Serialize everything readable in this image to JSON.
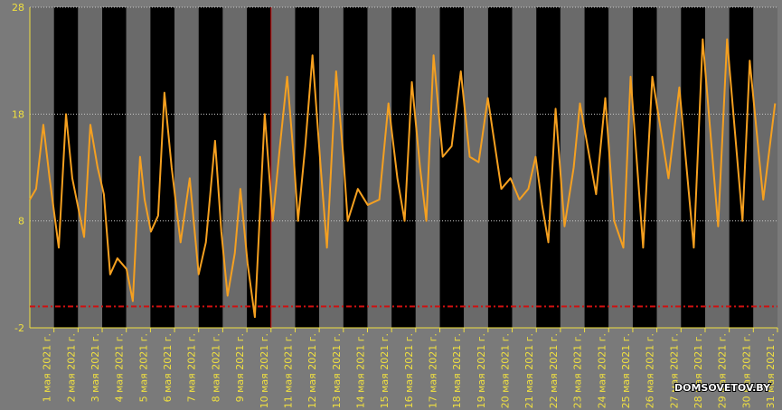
{
  "chart_data": {
    "type": "line",
    "watermark": "DOMSOVETOV.BY",
    "xlim": [
      0,
      31
    ],
    "ylim": [
      -2,
      28
    ],
    "yticks": [
      -2,
      8,
      18,
      28
    ],
    "xticks": [
      {
        "value": 1,
        "label": "1 мая 2021 г."
      },
      {
        "value": 2,
        "label": "2 мая 2021 г."
      },
      {
        "value": 3,
        "label": "3 мая 2021 г."
      },
      {
        "value": 4,
        "label": "4 мая 2021 г."
      },
      {
        "value": 5,
        "label": "5 мая 2021 г."
      },
      {
        "value": 6,
        "label": "6 мая 2021 г."
      },
      {
        "value": 7,
        "label": "7 мая 2021 г."
      },
      {
        "value": 8,
        "label": "8 мая 2021 г."
      },
      {
        "value": 9,
        "label": "9 мая 2021 г."
      },
      {
        "value": 10,
        "label": "10 мая 2021 г."
      },
      {
        "value": 11,
        "label": "11 мая 2021 г."
      },
      {
        "value": 12,
        "label": "12 мая 2021 г."
      },
      {
        "value": 13,
        "label": "13 мая 2021 г."
      },
      {
        "value": 14,
        "label": "14 мая 2021 г."
      },
      {
        "value": 15,
        "label": "15 мая 2021 г."
      },
      {
        "value": 16,
        "label": "16 мая 2021 г."
      },
      {
        "value": 17,
        "label": "17 мая 2021 г."
      },
      {
        "value": 18,
        "label": "18 мая 2021 г."
      },
      {
        "value": 19,
        "label": "19 мая 2021 г."
      },
      {
        "value": 20,
        "label": "20 мая 2021 г."
      },
      {
        "value": 21,
        "label": "21 мая 2021 г."
      },
      {
        "value": 22,
        "label": "22 мая 2021 г."
      },
      {
        "value": 23,
        "label": "23 мая 2021 г."
      },
      {
        "value": 24,
        "label": "24 мая 2021 г."
      },
      {
        "value": 25,
        "label": "25 мая 2021 г."
      },
      {
        "value": 26,
        "label": "26 мая 2021 г."
      },
      {
        "value": 27,
        "label": "27 мая 2021 г."
      },
      {
        "value": 28,
        "label": "28 мая 2021 г."
      },
      {
        "value": 29,
        "label": "29 мая 2021 г."
      },
      {
        "value": 30,
        "label": "30 мая 2021 г."
      },
      {
        "value": 31,
        "label": "31 мая 2021 г."
      }
    ],
    "grid": true,
    "hline": 0,
    "vline": 10,
    "reference_color": "#d01010",
    "series": [
      {
        "color": "#f5a020",
        "x": [
          0.0,
          0.26,
          0.56,
          0.82,
          1.2,
          1.5,
          1.76,
          2.25,
          2.51,
          2.81,
          3.07,
          3.33,
          3.63,
          4.01,
          4.27,
          4.57,
          4.76,
          5.02,
          5.32,
          5.58,
          5.88,
          6.25,
          6.63,
          7.0,
          7.3,
          7.68,
          7.94,
          8.2,
          8.5,
          8.73,
          9.03,
          9.33,
          9.74,
          10.07,
          10.37,
          10.67,
          10.94,
          11.12,
          11.42,
          11.72,
          12.06,
          12.32,
          12.7,
          13.0,
          13.18,
          13.6,
          14.01,
          14.49,
          14.87,
          15.24,
          15.54,
          15.84,
          16.18,
          16.44,
          16.74,
          17.12,
          17.49,
          17.87,
          18.24,
          18.61,
          18.99,
          19.55,
          19.93,
          20.3,
          20.67,
          20.97,
          21.24,
          21.5,
          21.8,
          22.17,
          22.55,
          22.81,
          23.48,
          23.86,
          24.23,
          24.61,
          24.91,
          25.43,
          25.81,
          26.48,
          26.93,
          27.53,
          27.9,
          28.54,
          28.91,
          29.55,
          29.85,
          30.41,
          30.9
        ],
        "values": [
          10,
          11,
          17,
          12,
          5.5,
          18,
          12,
          6.5,
          17,
          13,
          10.5,
          3,
          4.5,
          3.5,
          0.5,
          14,
          10,
          7,
          8.5,
          20,
          13,
          6,
          12,
          3,
          6,
          15.5,
          7,
          1,
          5,
          11,
          4,
          -1,
          18,
          8,
          15,
          21.5,
          14,
          8,
          15,
          23.5,
          13,
          5.5,
          22,
          14,
          8,
          11,
          9.5,
          10,
          19,
          12,
          8,
          21,
          13,
          8,
          23.5,
          14,
          15,
          22,
          14,
          13.5,
          19.5,
          11,
          12,
          10,
          11,
          14,
          9.5,
          6,
          18.5,
          7.5,
          13,
          19,
          10.5,
          19.5,
          8,
          5.5,
          21.5,
          5.5,
          21.5,
          12,
          20.5,
          5.5,
          25,
          7.5,
          25,
          8,
          23,
          10,
          19
        ]
      }
    ]
  }
}
